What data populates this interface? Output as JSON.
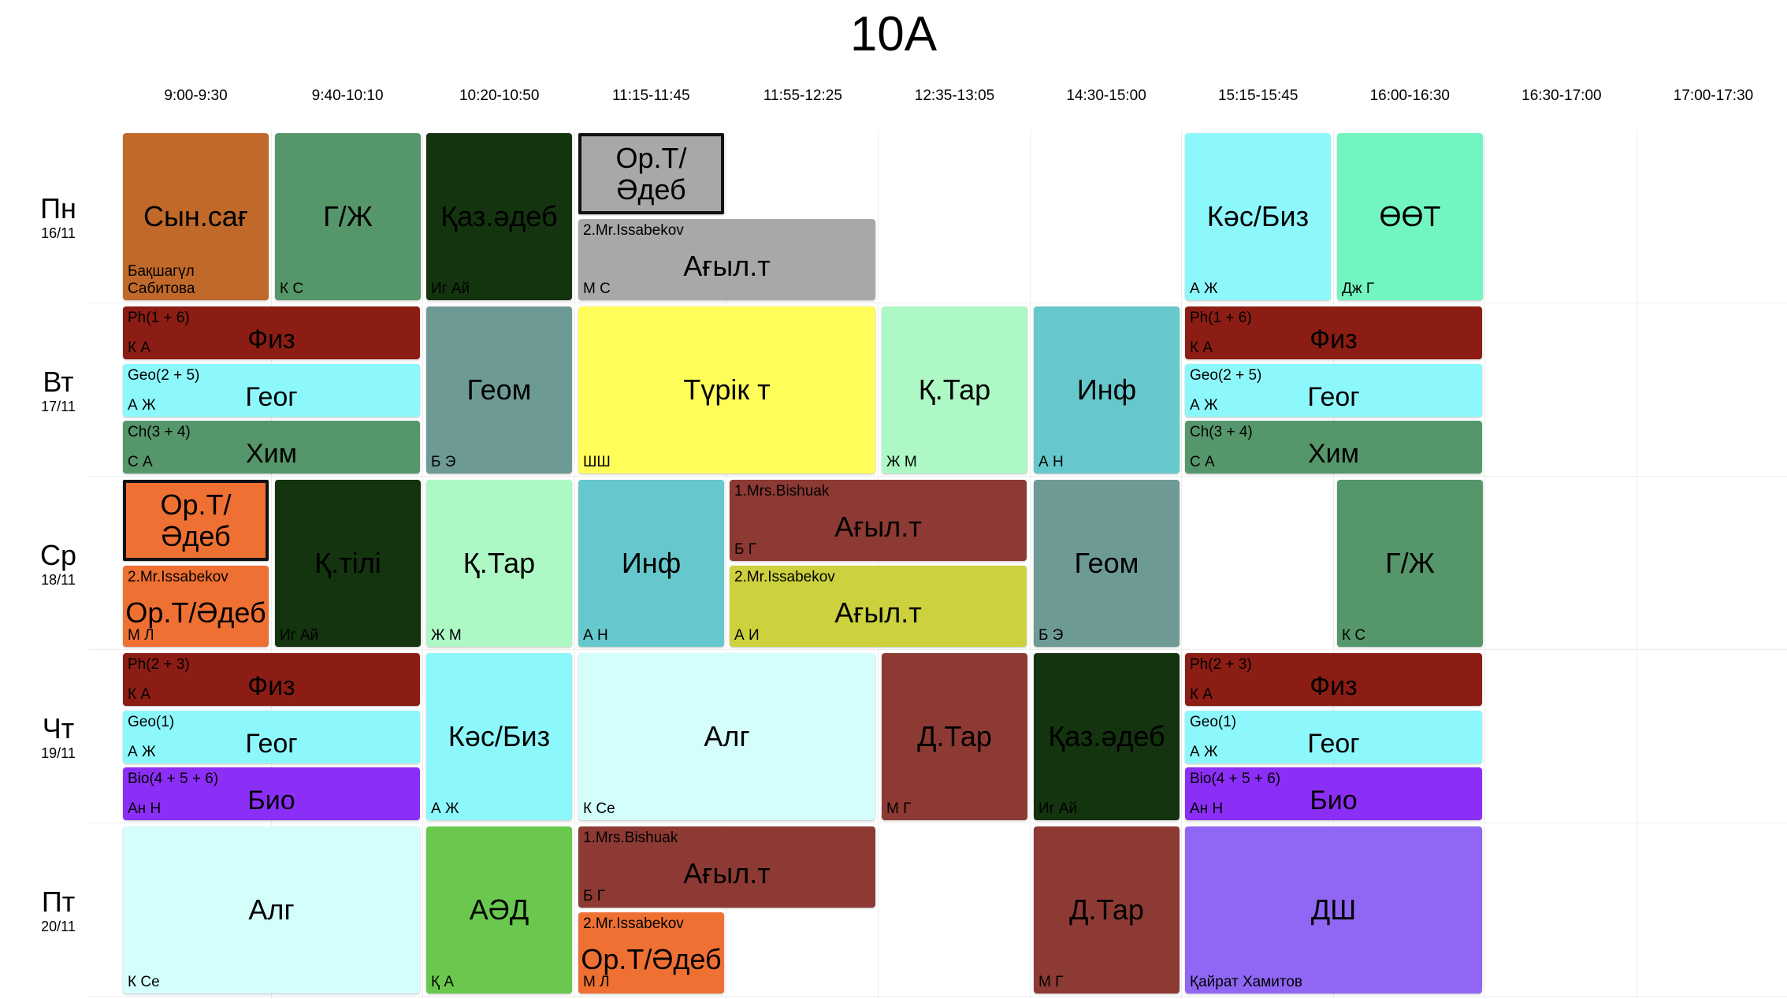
{
  "title": "10A",
  "times": [
    "9:00-9:30",
    "9:40-10:10",
    "10:20-10:50",
    "11:15-11:45",
    "11:55-12:25",
    "12:35-13:05",
    "14:30-15:00",
    "15:15-15:45",
    "16:00-16:30",
    "16:30-17:00",
    "17:00-17:30"
  ],
  "days": [
    {
      "name": "Пн",
      "date": "16/11"
    },
    {
      "name": "Вт",
      "date": "17/11"
    },
    {
      "name": "Ср",
      "date": "18/11"
    },
    {
      "name": "Чт",
      "date": "19/11"
    },
    {
      "name": "Пт",
      "date": "20/11"
    }
  ],
  "lessons": [
    {
      "day": 0,
      "slot": 0,
      "span": 1,
      "sub": 0,
      "subs": 1,
      "subject": "Сын.сағ",
      "teacher": "Бақшагүл\nСабитова",
      "group": "",
      "color": "#c0692a"
    },
    {
      "day": 0,
      "slot": 1,
      "span": 1,
      "sub": 0,
      "subs": 1,
      "subject": "Г/Ж",
      "teacher": "К С",
      "group": "",
      "color": "#55966a"
    },
    {
      "day": 0,
      "slot": 2,
      "span": 1,
      "sub": 0,
      "subs": 1,
      "subject": "Қаз.әдеб",
      "teacher": "Иг Ай",
      "group": "",
      "color": "#14330f"
    },
    {
      "day": 0,
      "slot": 3,
      "span": 1,
      "sub": 0,
      "subs": 2,
      "subject": "Ор.Т/\nӘдеб",
      "teacher": "",
      "group": "",
      "color": "#a8a8a8",
      "outlined": true
    },
    {
      "day": 0,
      "slot": 3,
      "span": 2,
      "sub": 1,
      "subs": 2,
      "subject": "Ағыл.т",
      "teacher": "М С",
      "group": "2.Mr.Issabekov",
      "color": "#a8a8a8"
    },
    {
      "day": 0,
      "slot": 7,
      "span": 1,
      "sub": 0,
      "subs": 1,
      "subject": "Кәс/Биз",
      "teacher": "А Ж",
      "group": "",
      "color": "#8df8fc"
    },
    {
      "day": 0,
      "slot": 8,
      "span": 1,
      "sub": 0,
      "subs": 1,
      "subject": "ӨӨТ",
      "teacher": "Дж Г",
      "group": "",
      "color": "#72f5c0"
    },
    {
      "day": 1,
      "slot": 0,
      "span": 2,
      "sub": 0,
      "subs": 3,
      "subject": "Физ",
      "teacher": "К А",
      "group": "Ph(1 + 6)",
      "color": "#8c1d14"
    },
    {
      "day": 1,
      "slot": 0,
      "span": 2,
      "sub": 1,
      "subs": 3,
      "subject": "Геог",
      "teacher": "А Ж",
      "group": "Geo(2 + 5)",
      "color": "#8df8fc"
    },
    {
      "day": 1,
      "slot": 0,
      "span": 2,
      "sub": 2,
      "subs": 3,
      "subject": "Хим",
      "teacher": "С А",
      "group": "Ch(3 + 4)",
      "color": "#55966a"
    },
    {
      "day": 1,
      "slot": 2,
      "span": 1,
      "sub": 0,
      "subs": 1,
      "subject": "Геом",
      "teacher": "Б Э",
      "group": "",
      "color": "#6e9a96"
    },
    {
      "day": 1,
      "slot": 3,
      "span": 2,
      "sub": 0,
      "subs": 1,
      "subject": "Түрік т",
      "teacher": "ШШ",
      "group": "",
      "color": "#fffd59"
    },
    {
      "day": 1,
      "slot": 5,
      "span": 1,
      "sub": 0,
      "subs": 1,
      "subject": "Қ.Тар",
      "teacher": "Ж М",
      "group": "",
      "color": "#adf8c5"
    },
    {
      "day": 1,
      "slot": 6,
      "span": 1,
      "sub": 0,
      "subs": 1,
      "subject": "Инф",
      "teacher": "А Н",
      "group": "",
      "color": "#66c8cc"
    },
    {
      "day": 1,
      "slot": 7,
      "span": 2,
      "sub": 0,
      "subs": 3,
      "subject": "Физ",
      "teacher": "К А",
      "group": "Ph(1 + 6)",
      "color": "#8c1d14"
    },
    {
      "day": 1,
      "slot": 7,
      "span": 2,
      "sub": 1,
      "subs": 3,
      "subject": "Геог",
      "teacher": "А Ж",
      "group": "Geo(2 + 5)",
      "color": "#8df8fc"
    },
    {
      "day": 1,
      "slot": 7,
      "span": 2,
      "sub": 2,
      "subs": 3,
      "subject": "Хим",
      "teacher": "С А",
      "group": "Ch(3 + 4)",
      "color": "#55966a"
    },
    {
      "day": 2,
      "slot": 0,
      "span": 1,
      "sub": 0,
      "subs": 2,
      "subject": "Ор.Т/\nӘдеб",
      "teacher": "",
      "group": "",
      "color": "#ee7033",
      "outlined": true
    },
    {
      "day": 2,
      "slot": 0,
      "span": 1,
      "sub": 1,
      "subs": 2,
      "subject": "Ор.Т/Әдеб",
      "teacher": "М Л",
      "group": "2.Mr.Issabekov",
      "color": "#ee7033"
    },
    {
      "day": 2,
      "slot": 1,
      "span": 1,
      "sub": 0,
      "subs": 1,
      "subject": "Қ.тілі",
      "teacher": "Иг Ай",
      "group": "",
      "color": "#14330f"
    },
    {
      "day": 2,
      "slot": 2,
      "span": 1,
      "sub": 0,
      "subs": 1,
      "subject": "Қ.Тар",
      "teacher": "Ж М",
      "group": "",
      "color": "#adf8c5"
    },
    {
      "day": 2,
      "slot": 3,
      "span": 1,
      "sub": 0,
      "subs": 1,
      "subject": "Инф",
      "teacher": "А Н",
      "group": "",
      "color": "#66c8cc"
    },
    {
      "day": 2,
      "slot": 4,
      "span": 2,
      "sub": 0,
      "subs": 2,
      "subject": "Ағыл.т",
      "teacher": "Б Г",
      "group": "1.Mrs.Bishuak",
      "color": "#8d3a34"
    },
    {
      "day": 2,
      "slot": 4,
      "span": 2,
      "sub": 1,
      "subs": 2,
      "subject": "Ағыл.т",
      "teacher": "А И",
      "group": "2.Mr.Issabekov",
      "color": "#ccd13e"
    },
    {
      "day": 2,
      "slot": 6,
      "span": 1,
      "sub": 0,
      "subs": 1,
      "subject": "Геом",
      "teacher": "Б Э",
      "group": "",
      "color": "#6e9a96"
    },
    {
      "day": 2,
      "slot": 8,
      "span": 1,
      "sub": 0,
      "subs": 1,
      "subject": "Г/Ж",
      "teacher": "К С",
      "group": "",
      "color": "#55966a"
    },
    {
      "day": 3,
      "slot": 0,
      "span": 2,
      "sub": 0,
      "subs": 3,
      "subject": "Физ",
      "teacher": "К А",
      "group": "Ph(2 + 3)",
      "color": "#8c1d14"
    },
    {
      "day": 3,
      "slot": 0,
      "span": 2,
      "sub": 1,
      "subs": 3,
      "subject": "Геог",
      "teacher": "А Ж",
      "group": "Geo(1)",
      "color": "#8df8fc"
    },
    {
      "day": 3,
      "slot": 0,
      "span": 2,
      "sub": 2,
      "subs": 3,
      "subject": "Био",
      "teacher": "Ан Н",
      "group": "Bio(4 + 5 + 6)",
      "color": "#8c2ff6"
    },
    {
      "day": 3,
      "slot": 2,
      "span": 1,
      "sub": 0,
      "subs": 1,
      "subject": "Кәс/Биз",
      "teacher": "А Ж",
      "group": "",
      "color": "#8df8fc"
    },
    {
      "day": 3,
      "slot": 3,
      "span": 2,
      "sub": 0,
      "subs": 1,
      "subject": "Алг",
      "teacher": "К Се",
      "group": "",
      "color": "#d3fefc"
    },
    {
      "day": 3,
      "slot": 5,
      "span": 1,
      "sub": 0,
      "subs": 1,
      "subject": "Д.Тар",
      "teacher": "М Г",
      "group": "",
      "color": "#8d3a34"
    },
    {
      "day": 3,
      "slot": 6,
      "span": 1,
      "sub": 0,
      "subs": 1,
      "subject": "Қаз.әдеб",
      "teacher": "Иг Ай",
      "group": "",
      "color": "#14330f"
    },
    {
      "day": 3,
      "slot": 7,
      "span": 2,
      "sub": 0,
      "subs": 3,
      "subject": "Физ",
      "teacher": "К А",
      "group": "Ph(2 + 3)",
      "color": "#8c1d14"
    },
    {
      "day": 3,
      "slot": 7,
      "span": 2,
      "sub": 1,
      "subs": 3,
      "subject": "Геог",
      "teacher": "А Ж",
      "group": "Geo(1)",
      "color": "#8df8fc"
    },
    {
      "day": 3,
      "slot": 7,
      "span": 2,
      "sub": 2,
      "subs": 3,
      "subject": "Био",
      "teacher": "Ан Н",
      "group": "Bio(4 + 5 + 6)",
      "color": "#8c2ff6"
    },
    {
      "day": 4,
      "slot": 0,
      "span": 2,
      "sub": 0,
      "subs": 1,
      "subject": "Алг",
      "teacher": "К Се",
      "group": "",
      "color": "#d3fefc"
    },
    {
      "day": 4,
      "slot": 2,
      "span": 1,
      "sub": 0,
      "subs": 1,
      "subject": "АӘД",
      "teacher": "Қ А",
      "group": "",
      "color": "#69c84d"
    },
    {
      "day": 4,
      "slot": 3,
      "span": 2,
      "sub": 0,
      "subs": 2,
      "subject": "Ағыл.т",
      "teacher": "Б Г",
      "group": "1.Mrs.Bishuak",
      "color": "#8d3a34"
    },
    {
      "day": 4,
      "slot": 3,
      "span": 1,
      "sub": 1,
      "subs": 2,
      "subject": "Ор.Т/Әдеб",
      "teacher": "М Л",
      "group": "2.Mr.Issabekov",
      "color": "#ee7033"
    },
    {
      "day": 4,
      "slot": 6,
      "span": 1,
      "sub": 0,
      "subs": 1,
      "subject": "Д.Тар",
      "teacher": "М Г",
      "group": "",
      "color": "#8d3a34"
    },
    {
      "day": 4,
      "slot": 7,
      "span": 2,
      "sub": 0,
      "subs": 1,
      "subject": "ДШ",
      "teacher": "Қайрат Хамитов",
      "group": "",
      "color": "#9067f4"
    }
  ]
}
